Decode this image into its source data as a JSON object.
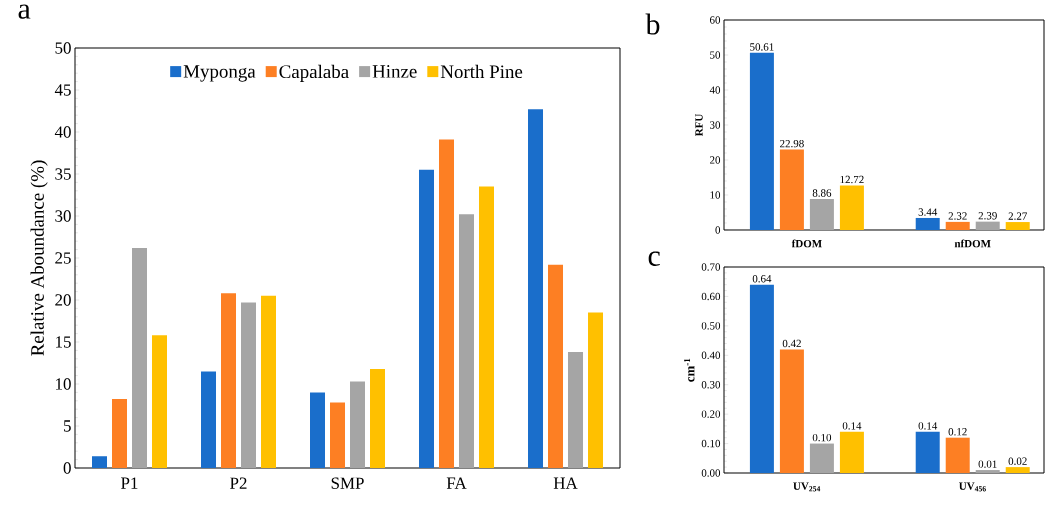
{
  "chart_data": [
    {
      "type": "bar",
      "ylabel": "Relative Aboundance (%)",
      "categories": [
        "P1",
        "P2",
        "SMP",
        "FA",
        "HA"
      ],
      "ylim": [
        0,
        50
      ],
      "yticks": [
        0,
        5,
        10,
        15,
        20,
        25,
        30,
        35,
        40,
        45,
        50
      ],
      "legend": "top",
      "annotations": [
        "a"
      ],
      "series": [
        {
          "name": "Myponga",
          "color": "#1a6ecb",
          "values": [
            1.4,
            11.5,
            9.0,
            35.5,
            42.7
          ]
        },
        {
          "name": "Capalaba",
          "color": "#fd7f23",
          "values": [
            8.2,
            20.8,
            7.8,
            39.1,
            24.2
          ]
        },
        {
          "name": "Hinze",
          "color": "#a5a5a5",
          "values": [
            26.2,
            19.7,
            10.3,
            30.2,
            13.8
          ]
        },
        {
          "name": "North Pine",
          "color": "#ffc000",
          "values": [
            15.8,
            20.5,
            11.8,
            33.5,
            18.5
          ]
        }
      ]
    },
    {
      "type": "bar",
      "ylabel": "RFU",
      "categories": [
        "fDOM",
        "nfDOM"
      ],
      "ylim": [
        0,
        60
      ],
      "yticks": [
        0,
        10,
        20,
        30,
        40,
        50,
        60
      ],
      "annotations": [
        "b"
      ],
      "series": [
        {
          "color": "#1a6ecb",
          "values": [
            50.61,
            3.44
          ],
          "value_labels": [
            "50.61",
            "3.44"
          ]
        },
        {
          "color": "#fd7f23",
          "values": [
            22.98,
            2.32
          ],
          "value_labels": [
            "22.98",
            "2.32"
          ]
        },
        {
          "color": "#a5a5a5",
          "values": [
            8.86,
            2.39
          ],
          "value_labels": [
            "8.86",
            "2.39"
          ]
        },
        {
          "color": "#ffc000",
          "values": [
            12.72,
            2.27
          ],
          "value_labels": [
            "12.72",
            "2.27"
          ]
        }
      ]
    },
    {
      "type": "bar",
      "ylabel": "cm$^{-1}$",
      "categories": [
        "UV$_{254}$",
        "UV$_{456}$"
      ],
      "ylim": [
        0,
        0.7
      ],
      "yticks": [
        {
          "value": 0,
          "label": "0.00"
        },
        {
          "value": 0.1,
          "label": "0.10"
        },
        {
          "value": 0.2,
          "label": "0.20"
        },
        {
          "value": 0.3,
          "label": "0.30"
        },
        {
          "value": 0.4,
          "label": "0.40"
        },
        {
          "value": 0.5,
          "label": "0.50"
        },
        {
          "value": 0.6,
          "label": "0.60"
        },
        {
          "value": 0.7,
          "label": "0.70"
        }
      ],
      "annotations": [
        "c"
      ],
      "series": [
        {
          "color": "#1a6ecb",
          "values": [
            0.64,
            0.14
          ],
          "value_labels": [
            "0.64",
            "0.14"
          ]
        },
        {
          "color": "#fd7f23",
          "values": [
            0.42,
            0.12
          ],
          "value_labels": [
            "0.42",
            "0.12"
          ]
        },
        {
          "color": "#a5a5a5",
          "values": [
            0.1,
            0.01
          ],
          "value_labels": [
            "0.10",
            "0.01"
          ]
        },
        {
          "color": "#ffc000",
          "values": [
            0.14,
            0.02
          ],
          "value_labels": [
            "0.14",
            "0.02"
          ]
        }
      ]
    }
  ]
}
